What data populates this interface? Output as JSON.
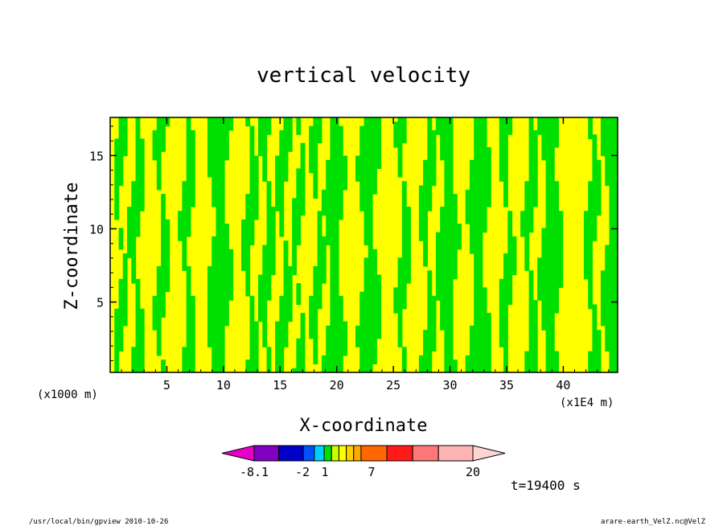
{
  "chart_data": {
    "type": "heatmap",
    "title": "vertical velocity",
    "xlabel": "X-coordinate",
    "ylabel": "Z-coordinate",
    "x_unit_left": "(x1000 m)",
    "x_unit_right": "(x1E4 m)",
    "xlim": [
      0,
      44.8
    ],
    "ylim": [
      0.2,
      17.6
    ],
    "x_ticks": [
      "5",
      "10",
      "15",
      "20",
      "25",
      "30",
      "35",
      "40"
    ],
    "y_ticks": [
      "5",
      "10",
      "15"
    ],
    "filled_levels": {
      "yellow_range": "0 to 1",
      "green_range": "-1 to 0"
    },
    "colors": {
      "yellow": "#ffff00",
      "green": "#00e000",
      "contour": "#000000"
    },
    "columns_x": [
      0.3,
      0.9,
      1.5,
      2.3,
      3.1,
      3.9,
      4.6,
      5.3,
      6.1,
      6.9,
      7.6,
      8.4,
      9.2,
      10.0,
      10.8,
      11.6,
      12.4,
      13.1,
      13.9,
      14.6,
      15.3,
      16.0,
      16.6,
      17.2,
      17.7,
      18.3,
      18.9,
      19.5,
      20.1,
      20.7,
      21.3,
      21.9,
      22.5,
      23.2,
      23.9,
      24.6,
      25.2,
      25.9,
      26.6,
      27.3,
      28.0,
      28.7,
      29.4,
      30.1,
      30.8,
      31.5,
      32.2,
      32.9,
      33.6,
      34.3,
      35.0,
      35.7,
      36.4,
      37.1,
      37.8,
      38.5,
      39.3,
      40.1,
      40.9,
      41.7,
      42.5,
      43.3,
      44.1
    ],
    "columns_sign": [
      1,
      -1,
      1,
      -1,
      1,
      1,
      -1,
      1,
      1,
      -1,
      1,
      1,
      -1,
      -1,
      1,
      1,
      -1,
      1,
      -1,
      1,
      -1,
      1,
      -1,
      1,
      1,
      -1,
      1,
      -1,
      -1,
      1,
      1,
      1,
      -1,
      -1,
      1,
      1,
      1,
      -1,
      1,
      1,
      -1,
      1,
      -1,
      -1,
      1,
      1,
      -1,
      -1,
      1,
      1,
      -1,
      1,
      1,
      -1,
      1,
      -1,
      -1,
      1,
      1,
      1,
      -1,
      1,
      -1
    ],
    "colorbar": {
      "colors": [
        "#e400c8",
        "#8000c0",
        "#0000c8",
        "#0050ff",
        "#00d0ff",
        "#00e000",
        "#c8ff00",
        "#ffff00",
        "#ffd000",
        "#ffa800",
        "#ff6800",
        "#ff1a1a",
        "#ff7878",
        "#ffb4b4",
        "#ffd4d4"
      ],
      "labels": [
        "-8.1",
        "-2",
        "1",
        "7",
        "20"
      ]
    },
    "time_label": "t=19400 s"
  },
  "footer": {
    "left": "/usr/local/bin/gpview  2010-10-26",
    "right": "arare-earth_VelZ.nc@VelZ"
  }
}
